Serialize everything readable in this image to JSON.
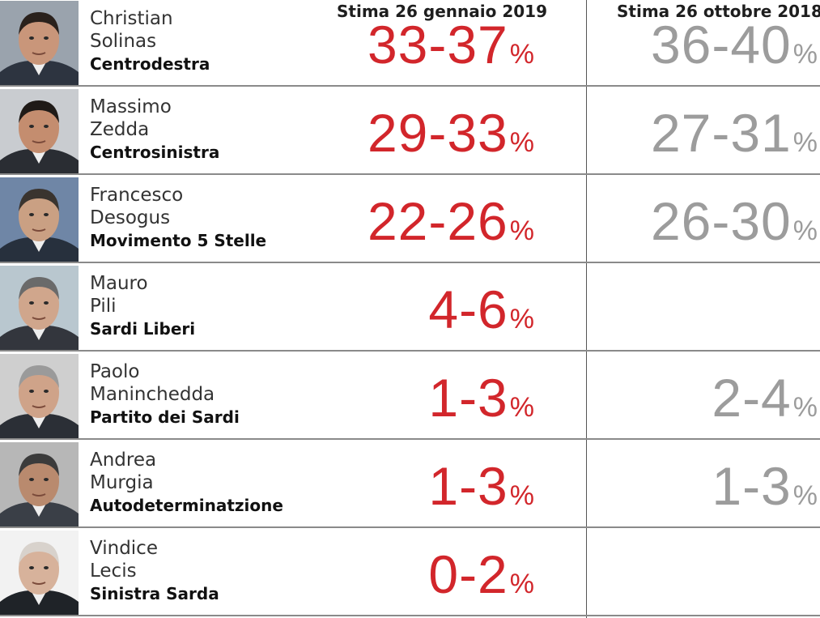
{
  "header": {
    "col_new": "Stima 26 gennaio 2019",
    "col_old": "Stima 26 ottobre 2018"
  },
  "colors": {
    "new": "#d2262b",
    "old": "#9c9c9c"
  },
  "rows": [
    {
      "first": "Christian",
      "last": "Solinas",
      "party": "Centrodestra",
      "new_range": "33-37",
      "new_sign": "%",
      "old_range": "36-40",
      "old_sign": "%"
    },
    {
      "first": "Massimo",
      "last": "Zedda",
      "party": "Centrosinistra",
      "new_range": "29-33",
      "new_sign": "%",
      "old_range": "27-31",
      "old_sign": "%"
    },
    {
      "first": "Francesco",
      "last": "Desogus",
      "party": "Movimento 5 Stelle",
      "new_range": "22-26",
      "new_sign": "%",
      "old_range": "26-30",
      "old_sign": "%"
    },
    {
      "first": "Mauro",
      "last": "Pili",
      "party": "Sardi Liberi",
      "new_range": "4-6",
      "new_sign": "%",
      "old_range": "",
      "old_sign": ""
    },
    {
      "first": "Paolo",
      "last": "Maninchedda",
      "party": "Partito dei Sardi",
      "new_range": "1-3",
      "new_sign": "%",
      "old_range": "2-4",
      "old_sign": "%"
    },
    {
      "first": "Andrea",
      "last": "Murgia",
      "party": "Autodeterminatzione",
      "new_range": "1-3",
      "new_sign": "%",
      "old_range": "1-3",
      "old_sign": "%"
    },
    {
      "first": "Vindice",
      "last": "Lecis",
      "party": "Sinistra Sarda",
      "new_range": "0-2",
      "new_sign": "%",
      "old_range": "",
      "old_sign": ""
    }
  ],
  "chart_data": {
    "type": "table",
    "columns": [
      "Stima 26 gennaio 2019",
      "Stima 26 ottobre 2018"
    ],
    "series": [
      {
        "name": "Stima 26 gennaio 2019",
        "values": [
          [
            33,
            37
          ],
          [
            29,
            33
          ],
          [
            22,
            26
          ],
          [
            4,
            6
          ],
          [
            1,
            3
          ],
          [
            1,
            3
          ],
          [
            0,
            2
          ]
        ]
      },
      {
        "name": "Stima 26 ottobre 2018",
        "values": [
          [
            36,
            40
          ],
          [
            27,
            31
          ],
          [
            26,
            30
          ],
          null,
          [
            2,
            4
          ],
          [
            1,
            3
          ],
          null
        ]
      }
    ],
    "categories": [
      "Christian Solinas",
      "Massimo Zedda",
      "Francesco Desogus",
      "Mauro Pili",
      "Paolo Maninchedda",
      "Andrea Murgia",
      "Vindice Lecis"
    ]
  }
}
